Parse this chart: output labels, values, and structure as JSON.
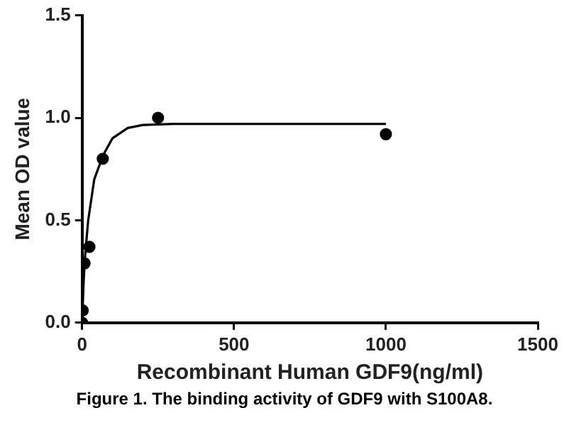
{
  "chart_data": {
    "type": "scatter",
    "xlabel": "Recombinant Human GDF9(ng/ml)",
    "ylabel": "Mean OD value",
    "annotations": [
      "Figure 1. The binding activity of GDF9 with S100A8."
    ],
    "xlim": [
      0,
      1500
    ],
    "xticks": [
      0,
      500,
      1000,
      1500
    ],
    "ylim": [
      0,
      1.5
    ],
    "yticks": [
      {
        "value": 0,
        "label": "0.0"
      },
      0.5,
      {
        "value": 1,
        "label": "1.0"
      },
      1.5
    ],
    "grid": false,
    "legend": false,
    "marker": "circle",
    "series": [
      {
        "color": "#000000",
        "x": [
          0,
          2,
          8,
          24,
          68,
          250,
          1000
        ],
        "values": [
          0,
          0.06,
          0.29,
          0.37,
          0.8,
          1,
          0.92
        ]
      },
      {
        "type": "line",
        "color": "#000000",
        "marker": "none",
        "x": [
          0,
          5,
          10,
          20,
          40,
          70,
          100,
          150,
          200,
          300,
          1000
        ],
        "values": [
          0,
          0.2,
          0.33,
          0.5,
          0.7,
          0.82,
          0.9,
          0.95,
          0.965,
          0.97,
          0.97
        ]
      }
    ]
  }
}
